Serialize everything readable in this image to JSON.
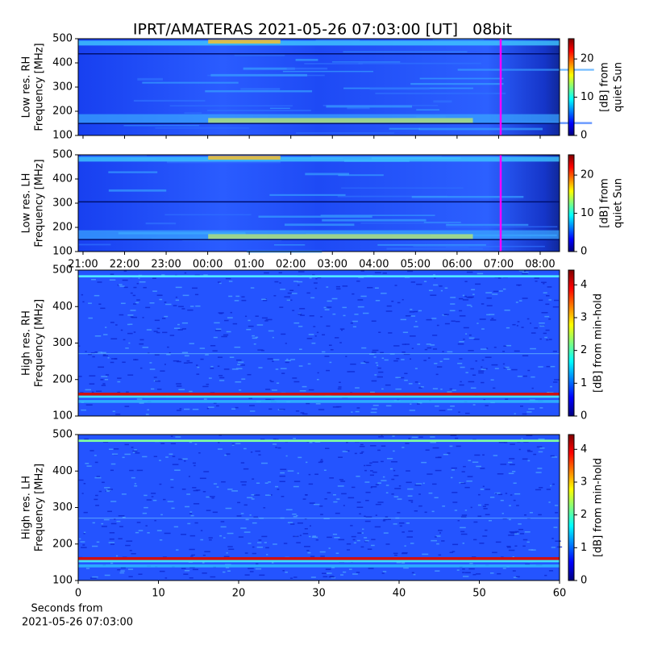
{
  "title": "IPRT/AMATERAS 2021-05-26 07:03:00 [UT]   08bit",
  "time_axis": {
    "xlim": [
      -3.116,
      8.466
    ],
    "xticks": [
      {
        "value": -3,
        "label": "21:00"
      },
      {
        "value": -2,
        "label": "22:00"
      },
      {
        "value": -1,
        "label": "23:00"
      },
      {
        "value": 0,
        "label": "00:00"
      },
      {
        "value": 1,
        "label": "01:00"
      },
      {
        "value": 2,
        "label": "02:00"
      },
      {
        "value": 3,
        "label": "03:00"
      },
      {
        "value": 4,
        "label": "04:00"
      },
      {
        "value": 5,
        "label": "05:00"
      },
      {
        "value": 6,
        "label": "06:00"
      },
      {
        "value": 7,
        "label": "07:00"
      },
      {
        "value": 8,
        "label": "08:00"
      }
    ],
    "marker": 7.05
  },
  "seconds_axis": {
    "xlim": [
      0,
      60
    ],
    "xticks": [
      0,
      10,
      20,
      30,
      40,
      50,
      60
    ],
    "xlabel": [
      "Seconds from",
      "2021-05-26 07:03:00"
    ]
  },
  "panels": [
    {
      "ylabel": [
        "Low res. RH",
        "Frequency [MHz]"
      ],
      "ylim": [
        100,
        500
      ],
      "yticks": [
        100,
        200,
        300,
        400,
        500
      ],
      "colorbar": {
        "label": [
          "[dB] from",
          "quiet Sun"
        ],
        "clim": [
          0,
          25.3
        ],
        "ticks": [
          0,
          10,
          20
        ]
      }
    },
    {
      "ylabel": [
        "Low res. LH",
        "Frequency [MHz]"
      ],
      "ylim": [
        100,
        500
      ],
      "yticks": [
        100,
        200,
        300,
        400,
        500
      ],
      "colorbar": {
        "label": [
          "[dB] from",
          "quiet Sun"
        ],
        "clim": [
          0,
          25.3
        ],
        "ticks": [
          0,
          10,
          20
        ]
      }
    },
    {
      "ylabel": [
        "High res. RH",
        "Frequency [MHz]"
      ],
      "ylim": [
        100,
        500
      ],
      "yticks": [
        100,
        200,
        300,
        400,
        500
      ],
      "colorbar": {
        "label": [
          "[dB] from min-hold"
        ],
        "clim": [
          0,
          4.45
        ],
        "ticks": [
          0,
          1,
          2,
          3,
          4
        ]
      }
    },
    {
      "ylabel": [
        "High res. LH",
        "Frequency [MHz]"
      ],
      "ylim": [
        100,
        500
      ],
      "yticks": [
        100,
        200,
        300,
        400,
        500
      ],
      "colorbar": {
        "label": [
          "[dB] from min-hold"
        ],
        "clim": [
          0,
          4.45
        ],
        "ticks": [
          0,
          1,
          2,
          3,
          4
        ]
      }
    }
  ]
}
